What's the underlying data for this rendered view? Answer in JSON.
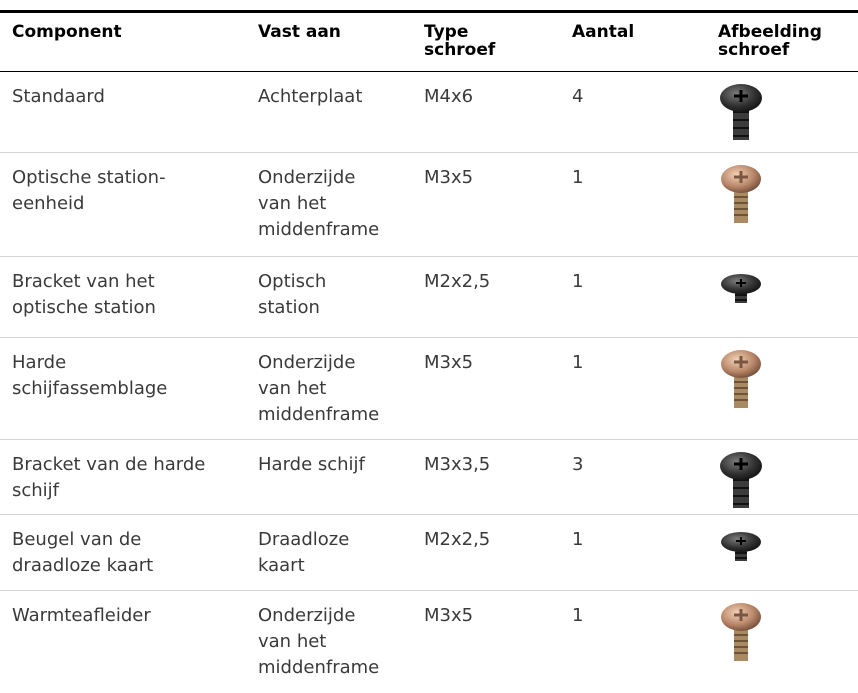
{
  "table": {
    "header": [
      "Component",
      "Vast aan",
      "Type schroef",
      "Aantal",
      "Afbeelding schroef"
    ],
    "rows": [
      [
        "Standaard",
        "Achterplaat",
        "M4x6",
        4
      ],
      [
        "Optische station-eenheid",
        "Onderzijde van het middenframe",
        "M3x5",
        1
      ],
      [
        "Bracket van het optische station",
        "Optisch station",
        "M2x2,5",
        1
      ],
      [
        "Harde schijfassemblage",
        "Onderzijde van het middenframe",
        "M3x5",
        1
      ],
      [
        "Bracket van de harde schijf",
        "Harde schijf",
        "M3x3,5",
        3
      ],
      [
        "Beugel van de draadloze kaart",
        "Draadloze kaart",
        "M2x2,5",
        1
      ],
      [
        "Warmteafleider",
        "Onderzijde van het middenframe",
        "M3x5",
        1
      ]
    ]
  }
}
